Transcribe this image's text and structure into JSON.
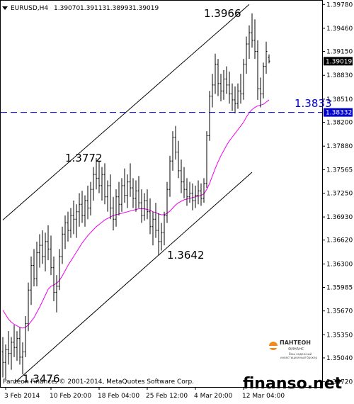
{
  "chart_data": {
    "type": "ohlc",
    "symbol_label": "EURUSD,H4",
    "ohlc_readout": [
      "1.39070",
      "1.39113",
      "1.38993",
      "1.39019"
    ],
    "ylim": [
      1.3465,
      1.3983
    ],
    "y_ticks": [
      "1.39780",
      "1.39460",
      "1.39150",
      "1.38830",
      "1.38510",
      "1.38200",
      "1.37880",
      "1.37565",
      "1.37250",
      "1.36930",
      "1.36620",
      "1.36300",
      "1.35985",
      "1.35670",
      "1.35350",
      "1.35040",
      "1.34720"
    ],
    "x_ticks": [
      "3 Feb 2014",
      "10 Feb 20:00",
      "18 Feb 04:00",
      "25 Feb 12:00",
      "4 Mar 20:00",
      "12 Mar 04:00"
    ],
    "x_tick_index": [
      1,
      17,
      34,
      51,
      68,
      85
    ],
    "bar_count": 95,
    "last_price": "1.39019",
    "level_price": "1.38332",
    "level_value": 1.38332,
    "annotations": [
      {
        "text": "1.3966",
        "bar": 71,
        "price": 1.3966
      },
      {
        "text": "1.3772",
        "bar": 22,
        "price": 1.3772
      },
      {
        "text": "1.3642",
        "bar": 58,
        "price": 1.3642
      },
      {
        "text": "1.3476",
        "bar": 7,
        "price": 1.3476
      },
      {
        "text": "1.3833",
        "bar": 103,
        "price": 1.3845
      }
    ],
    "ohlc": [
      {
        "o": 1.3512,
        "h": 1.3532,
        "l": 1.3478,
        "c": 1.3498
      },
      {
        "o": 1.3498,
        "h": 1.3522,
        "l": 1.3476,
        "c": 1.3515
      },
      {
        "o": 1.3515,
        "h": 1.354,
        "l": 1.3495,
        "c": 1.351
      },
      {
        "o": 1.351,
        "h": 1.3532,
        "l": 1.3488,
        "c": 1.3525
      },
      {
        "o": 1.3525,
        "h": 1.3548,
        "l": 1.3505,
        "c": 1.3518
      },
      {
        "o": 1.3518,
        "h": 1.354,
        "l": 1.35,
        "c": 1.353
      },
      {
        "o": 1.353,
        "h": 1.3545,
        "l": 1.3495,
        "c": 1.3505
      },
      {
        "o": 1.3505,
        "h": 1.3525,
        "l": 1.3482,
        "c": 1.3512
      },
      {
        "o": 1.3512,
        "h": 1.356,
        "l": 1.3505,
        "c": 1.355
      },
      {
        "o": 1.355,
        "h": 1.3605,
        "l": 1.354,
        "c": 1.3595
      },
      {
        "o": 1.3595,
        "h": 1.364,
        "l": 1.3575,
        "c": 1.3628
      },
      {
        "o": 1.3628,
        "h": 1.365,
        "l": 1.36,
        "c": 1.361
      },
      {
        "o": 1.361,
        "h": 1.366,
        "l": 1.36,
        "c": 1.3645
      },
      {
        "o": 1.3645,
        "h": 1.367,
        "l": 1.3625,
        "c": 1.3655
      },
      {
        "o": 1.3655,
        "h": 1.3675,
        "l": 1.363,
        "c": 1.364
      },
      {
        "o": 1.364,
        "h": 1.3672,
        "l": 1.362,
        "c": 1.366
      },
      {
        "o": 1.366,
        "h": 1.3682,
        "l": 1.3635,
        "c": 1.365
      },
      {
        "o": 1.365,
        "h": 1.3668,
        "l": 1.3615,
        "c": 1.3625
      },
      {
        "o": 1.3625,
        "h": 1.364,
        "l": 1.358,
        "c": 1.3592
      },
      {
        "o": 1.3592,
        "h": 1.3615,
        "l": 1.3565,
        "c": 1.36
      },
      {
        "o": 1.36,
        "h": 1.365,
        "l": 1.3595,
        "c": 1.364
      },
      {
        "o": 1.364,
        "h": 1.368,
        "l": 1.363,
        "c": 1.367
      },
      {
        "o": 1.367,
        "h": 1.3695,
        "l": 1.365,
        "c": 1.3685
      },
      {
        "o": 1.3685,
        "h": 1.37,
        "l": 1.366,
        "c": 1.3675
      },
      {
        "o": 1.3675,
        "h": 1.3705,
        "l": 1.3665,
        "c": 1.3695
      },
      {
        "o": 1.3695,
        "h": 1.3715,
        "l": 1.367,
        "c": 1.369
      },
      {
        "o": 1.369,
        "h": 1.371,
        "l": 1.3665,
        "c": 1.37
      },
      {
        "o": 1.37,
        "h": 1.3725,
        "l": 1.368,
        "c": 1.371
      },
      {
        "o": 1.371,
        "h": 1.3728,
        "l": 1.3685,
        "c": 1.3695
      },
      {
        "o": 1.3695,
        "h": 1.3722,
        "l": 1.368,
        "c": 1.3715
      },
      {
        "o": 1.3715,
        "h": 1.3735,
        "l": 1.369,
        "c": 1.3705
      },
      {
        "o": 1.3705,
        "h": 1.374,
        "l": 1.3695,
        "c": 1.373
      },
      {
        "o": 1.373,
        "h": 1.376,
        "l": 1.3715,
        "c": 1.375
      },
      {
        "o": 1.375,
        "h": 1.3772,
        "l": 1.373,
        "c": 1.3745
      },
      {
        "o": 1.3745,
        "h": 1.3768,
        "l": 1.3725,
        "c": 1.3735
      },
      {
        "o": 1.3735,
        "h": 1.376,
        "l": 1.3715,
        "c": 1.375
      },
      {
        "o": 1.375,
        "h": 1.3765,
        "l": 1.371,
        "c": 1.372
      },
      {
        "o": 1.372,
        "h": 1.3742,
        "l": 1.37,
        "c": 1.3735
      },
      {
        "o": 1.3735,
        "h": 1.375,
        "l": 1.369,
        "c": 1.3705
      },
      {
        "o": 1.3705,
        "h": 1.372,
        "l": 1.3675,
        "c": 1.369
      },
      {
        "o": 1.369,
        "h": 1.373,
        "l": 1.368,
        "c": 1.372
      },
      {
        "o": 1.372,
        "h": 1.374,
        "l": 1.3695,
        "c": 1.371
      },
      {
        "o": 1.371,
        "h": 1.3745,
        "l": 1.37,
        "c": 1.3735
      },
      {
        "o": 1.3735,
        "h": 1.3758,
        "l": 1.3712,
        "c": 1.3722
      },
      {
        "o": 1.3722,
        "h": 1.375,
        "l": 1.3705,
        "c": 1.374
      },
      {
        "o": 1.374,
        "h": 1.3765,
        "l": 1.372,
        "c": 1.3732
      },
      {
        "o": 1.3732,
        "h": 1.3745,
        "l": 1.3705,
        "c": 1.3718
      },
      {
        "o": 1.3718,
        "h": 1.3742,
        "l": 1.37,
        "c": 1.3728
      },
      {
        "o": 1.3728,
        "h": 1.3748,
        "l": 1.3705,
        "c": 1.3712
      },
      {
        "o": 1.3712,
        "h": 1.373,
        "l": 1.3685,
        "c": 1.3695
      },
      {
        "o": 1.3695,
        "h": 1.3725,
        "l": 1.3688,
        "c": 1.3715
      },
      {
        "o": 1.3715,
        "h": 1.373,
        "l": 1.369,
        "c": 1.37
      },
      {
        "o": 1.37,
        "h": 1.3718,
        "l": 1.367,
        "c": 1.368
      },
      {
        "o": 1.368,
        "h": 1.37,
        "l": 1.3655,
        "c": 1.369
      },
      {
        "o": 1.369,
        "h": 1.3712,
        "l": 1.3665,
        "c": 1.3675
      },
      {
        "o": 1.3675,
        "h": 1.3698,
        "l": 1.3642,
        "c": 1.366
      },
      {
        "o": 1.366,
        "h": 1.3685,
        "l": 1.3648,
        "c": 1.3672
      },
      {
        "o": 1.3672,
        "h": 1.37,
        "l": 1.3655,
        "c": 1.3695
      },
      {
        "o": 1.3695,
        "h": 1.374,
        "l": 1.3685,
        "c": 1.373
      },
      {
        "o": 1.373,
        "h": 1.3775,
        "l": 1.372,
        "c": 1.3768
      },
      {
        "o": 1.3768,
        "h": 1.3808,
        "l": 1.3755,
        "c": 1.38
      },
      {
        "o": 1.38,
        "h": 1.3815,
        "l": 1.377,
        "c": 1.378
      },
      {
        "o": 1.378,
        "h": 1.3795,
        "l": 1.3745,
        "c": 1.3755
      },
      {
        "o": 1.3755,
        "h": 1.377,
        "l": 1.3725,
        "c": 1.374
      },
      {
        "o": 1.374,
        "h": 1.376,
        "l": 1.3718,
        "c": 1.373
      },
      {
        "o": 1.373,
        "h": 1.3745,
        "l": 1.3708,
        "c": 1.372
      },
      {
        "o": 1.372,
        "h": 1.374,
        "l": 1.3712,
        "c": 1.3725
      },
      {
        "o": 1.3725,
        "h": 1.3738,
        "l": 1.3702,
        "c": 1.3715
      },
      {
        "o": 1.3715,
        "h": 1.3735,
        "l": 1.3705,
        "c": 1.3722
      },
      {
        "o": 1.3722,
        "h": 1.3742,
        "l": 1.371,
        "c": 1.3728
      },
      {
        "o": 1.3728,
        "h": 1.3738,
        "l": 1.3708,
        "c": 1.3718
      },
      {
        "o": 1.3718,
        "h": 1.3745,
        "l": 1.3712,
        "c": 1.3738
      },
      {
        "o": 1.3738,
        "h": 1.3808,
        "l": 1.3732,
        "c": 1.3802
      },
      {
        "o": 1.3802,
        "h": 1.3862,
        "l": 1.3795,
        "c": 1.3855
      },
      {
        "o": 1.3855,
        "h": 1.3885,
        "l": 1.384,
        "c": 1.387
      },
      {
        "o": 1.387,
        "h": 1.3912,
        "l": 1.3858,
        "c": 1.3898
      },
      {
        "o": 1.3898,
        "h": 1.3905,
        "l": 1.3855,
        "c": 1.3872
      },
      {
        "o": 1.3872,
        "h": 1.3885,
        "l": 1.3848,
        "c": 1.3862
      },
      {
        "o": 1.3862,
        "h": 1.389,
        "l": 1.385,
        "c": 1.3878
      },
      {
        "o": 1.3878,
        "h": 1.3895,
        "l": 1.3858,
        "c": 1.387
      },
      {
        "o": 1.387,
        "h": 1.3888,
        "l": 1.3845,
        "c": 1.3858
      },
      {
        "o": 1.3858,
        "h": 1.3872,
        "l": 1.3835,
        "c": 1.385
      },
      {
        "o": 1.385,
        "h": 1.3868,
        "l": 1.3832,
        "c": 1.3845
      },
      {
        "o": 1.3845,
        "h": 1.3872,
        "l": 1.3838,
        "c": 1.3862
      },
      {
        "o": 1.3862,
        "h": 1.3885,
        "l": 1.3845,
        "c": 1.3858
      },
      {
        "o": 1.3858,
        "h": 1.3905,
        "l": 1.385,
        "c": 1.3898
      },
      {
        "o": 1.3898,
        "h": 1.3935,
        "l": 1.3885,
        "c": 1.3925
      },
      {
        "o": 1.3925,
        "h": 1.395,
        "l": 1.3905,
        "c": 1.394
      },
      {
        "o": 1.394,
        "h": 1.3966,
        "l": 1.392,
        "c": 1.393
      },
      {
        "o": 1.393,
        "h": 1.3958,
        "l": 1.3905,
        "c": 1.3915
      },
      {
        "o": 1.3915,
        "h": 1.393,
        "l": 1.385,
        "c": 1.3865
      },
      {
        "o": 1.3865,
        "h": 1.388,
        "l": 1.384,
        "c": 1.3858
      },
      {
        "o": 1.3858,
        "h": 1.39,
        "l": 1.3852,
        "c": 1.3895
      },
      {
        "o": 1.3895,
        "h": 1.3928,
        "l": 1.3885,
        "c": 1.3915
      },
      {
        "o": 1.3907,
        "h": 1.3911,
        "l": 1.3899,
        "c": 1.3902
      }
    ],
    "ma": [
      1.3568,
      1.3562,
      1.3556,
      1.3552,
      1.3549,
      1.3547,
      1.3545,
      1.3544,
      1.3545,
      1.3548,
      1.3553,
      1.3558,
      1.3565,
      1.3572,
      1.358,
      1.3588,
      1.3596,
      1.36,
      1.3602,
      1.3604,
      1.3608,
      1.3614,
      1.3621,
      1.3628,
      1.3634,
      1.364,
      1.3646,
      1.3652,
      1.3658,
      1.3663,
      1.3668,
      1.3672,
      1.3676,
      1.368,
      1.3683,
      1.3686,
      1.3689,
      1.3691,
      1.3693,
      1.3695,
      1.3696,
      1.3697,
      1.3698,
      1.3699,
      1.37,
      1.3701,
      1.3702,
      1.3703,
      1.3704,
      1.3704,
      1.3704,
      1.3703,
      1.3702,
      1.37,
      1.3699,
      1.3697,
      1.3696,
      1.3696,
      1.3698,
      1.3701,
      1.3705,
      1.3709,
      1.3712,
      1.3714,
      1.3716,
      1.3717,
      1.3718,
      1.3719,
      1.372,
      1.3721,
      1.3722,
      1.3724,
      1.373,
      1.3738,
      1.3748,
      1.3758,
      1.3767,
      1.3775,
      1.3782,
      1.3789,
      1.3795,
      1.38,
      1.3805,
      1.381,
      1.3815,
      1.382,
      1.3827,
      1.3833,
      1.3837,
      1.384,
      1.3842,
      1.3843,
      1.3844,
      1.3847,
      1.385
    ]
  },
  "watermark": {
    "copyright": "Panteon Finance, © 2001-2014, MetaQuotes Software Corp.",
    "logo_name": "ПАНТЕОН",
    "logo_sub1": "ФИНАНС",
    "logo_sub2": "Ваш надежный",
    "logo_sub3": "инвестиционный брокер",
    "site": "finanso.net"
  },
  "colors": {
    "bars": "#000000",
    "ma_line": "#ee00ee",
    "level_line": "#0000cc",
    "channel": "#000000",
    "grid_frame": "#000000",
    "last_price_bg": "#000000",
    "level_price_bg": "#0000cc"
  }
}
